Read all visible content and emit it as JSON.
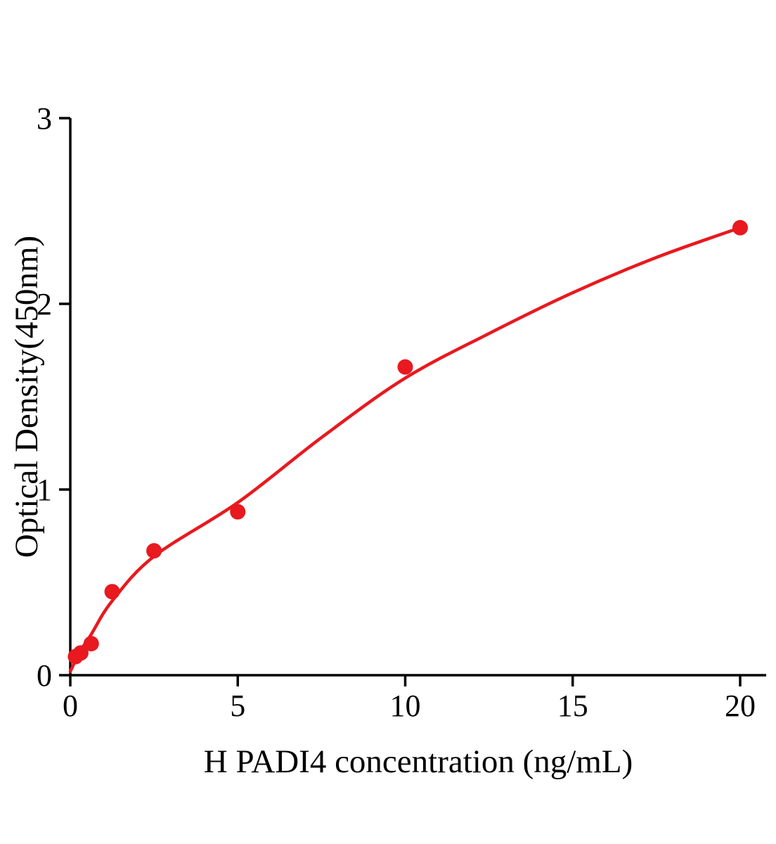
{
  "chart_data": {
    "type": "scatter",
    "title": "",
    "xlabel": "H PADI4 concentration (ng/mL)",
    "ylabel": "Optical Density(450nm)",
    "xlim": [
      0,
      20.8
    ],
    "ylim": [
      0,
      3
    ],
    "xticks": [
      0,
      5,
      10,
      15,
      20
    ],
    "yticks": [
      0,
      1,
      2,
      3
    ],
    "grid": false,
    "legend": "none",
    "accent_color": "#e8191f",
    "axis_color": "#000000",
    "points": [
      {
        "x": 0.156,
        "y": 0.1
      },
      {
        "x": 0.313,
        "y": 0.12
      },
      {
        "x": 0.625,
        "y": 0.17
      },
      {
        "x": 1.25,
        "y": 0.45
      },
      {
        "x": 2.5,
        "y": 0.67
      },
      {
        "x": 5,
        "y": 0.88
      },
      {
        "x": 10,
        "y": 1.66
      },
      {
        "x": 20,
        "y": 2.41
      }
    ],
    "fit_curve": [
      [
        0,
        0.02
      ],
      [
        0.3,
        0.13
      ],
      [
        0.625,
        0.22
      ],
      [
        1.25,
        0.4
      ],
      [
        2.5,
        0.64
      ],
      [
        5,
        0.93
      ],
      [
        7.5,
        1.28
      ],
      [
        10,
        1.6
      ],
      [
        12.5,
        1.84
      ],
      [
        15,
        2.06
      ],
      [
        17.5,
        2.25
      ],
      [
        20,
        2.41
      ]
    ]
  }
}
